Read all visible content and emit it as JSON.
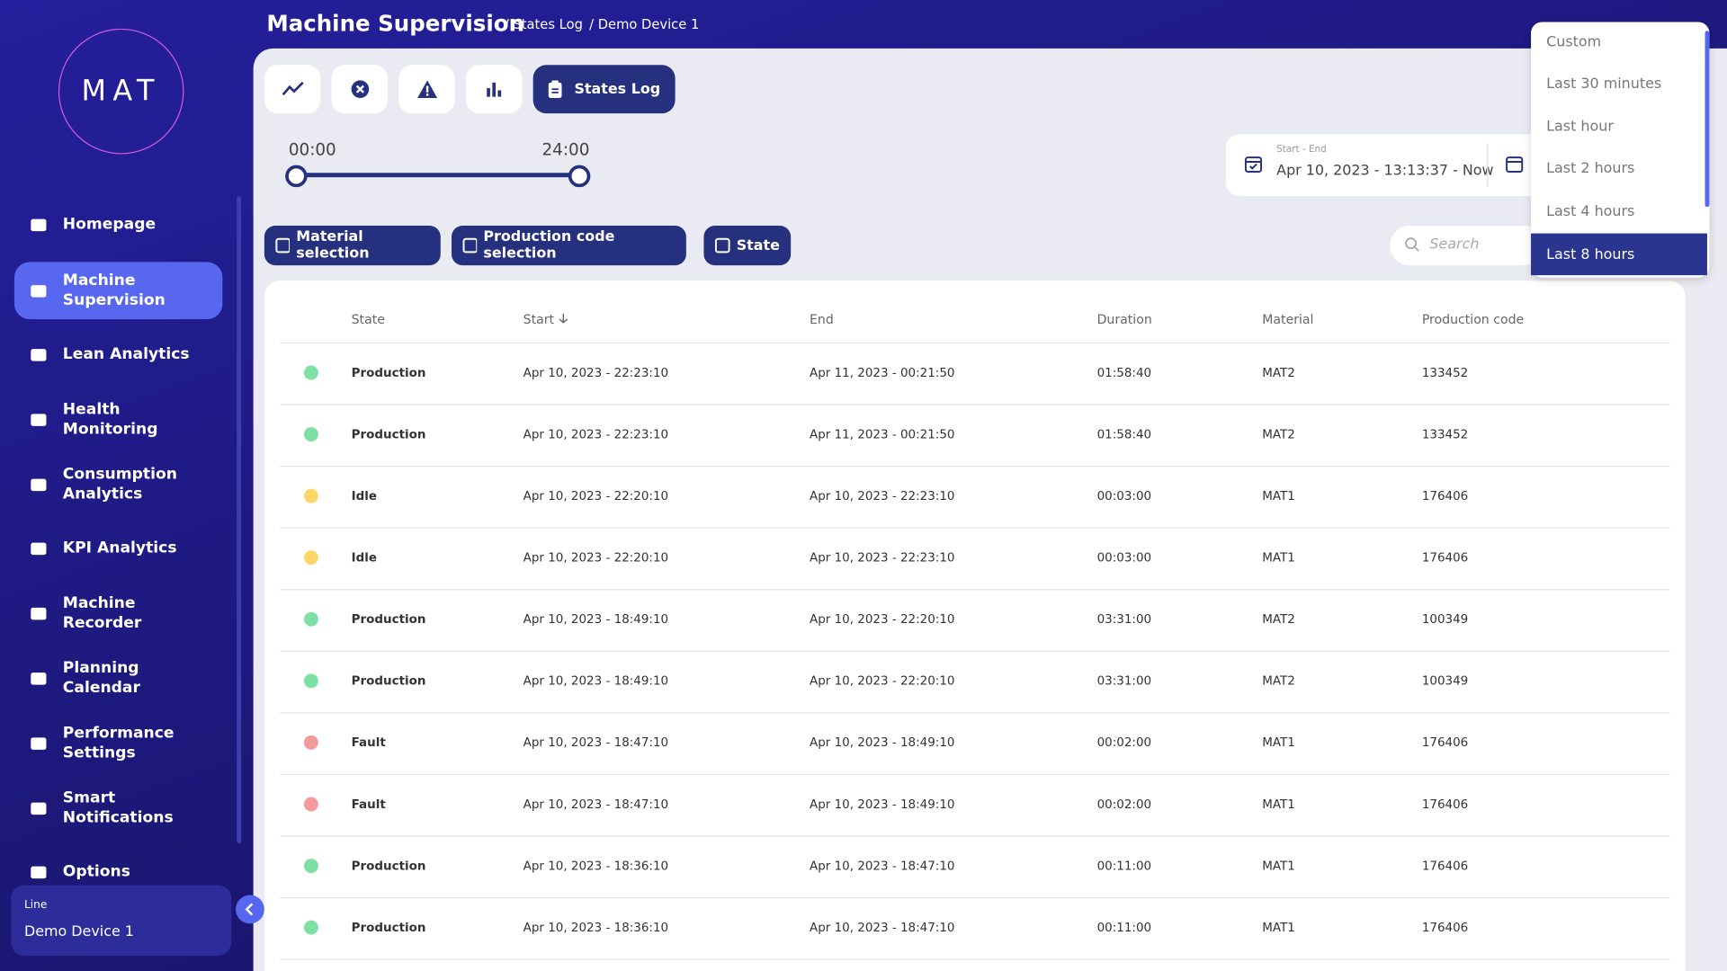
{
  "sidebar": {
    "logo": "MAT",
    "nav": [
      {
        "label": "Homepage"
      },
      {
        "label": "Machine Supervision",
        "active": true
      },
      {
        "label": "Lean Analytics"
      },
      {
        "label": "Health Monitoring"
      },
      {
        "label": "Consumption Analytics"
      },
      {
        "label": "KPI Analytics"
      },
      {
        "label": "Machine Recorder"
      },
      {
        "label": "Planning Calendar"
      },
      {
        "label": "Performance Settings"
      },
      {
        "label": "Smart Notifications"
      },
      {
        "label": "Options"
      }
    ],
    "line_label": "Line",
    "line_value": "Demo Device 1"
  },
  "header": {
    "title": "Machine Supervision",
    "breadcrumbs": [
      "/ States Log",
      "/ Demo Device 1"
    ]
  },
  "tabs": {
    "active_label": "States Log"
  },
  "slider": {
    "start": "00:00",
    "end": "24:00"
  },
  "date_range": {
    "label": "Start - End",
    "value": "Apr 10, 2023 - 13:13:37 - Now"
  },
  "filters": [
    "Material selection",
    "Production code selection",
    "State"
  ],
  "search": {
    "placeholder": "Search"
  },
  "dropdown": [
    {
      "label": "Custom"
    },
    {
      "label": "Last 30 minutes"
    },
    {
      "label": "Last hour"
    },
    {
      "label": "Last 2 hours"
    },
    {
      "label": "Last 4 hours"
    },
    {
      "label": "Last 8 hours",
      "selected": true
    }
  ],
  "table": {
    "columns": [
      {
        "label": "State"
      },
      {
        "label": "Start",
        "sorted": true
      },
      {
        "label": "End"
      },
      {
        "label": "Duration"
      },
      {
        "label": "Material"
      },
      {
        "label": "Production code"
      }
    ],
    "rows": [
      {
        "color": "#7ee0a4",
        "cells": [
          "Production",
          "Apr 10, 2023 - 22:23:10",
          "Apr 11, 2023 - 00:21:50",
          "01:58:40",
          "MAT2",
          "133452"
        ]
      },
      {
        "color": "#7ee0a4",
        "cells": [
          "Production",
          "Apr 10, 2023 - 22:23:10",
          "Apr 11, 2023 - 00:21:50",
          "01:58:40",
          "MAT2",
          "133452"
        ]
      },
      {
        "color": "#fcd667",
        "cells": [
          "Idle",
          "Apr 10, 2023 - 22:20:10",
          "Apr 10, 2023 - 22:23:10",
          "00:03:00",
          "MAT1",
          "176406"
        ]
      },
      {
        "color": "#fcd667",
        "cells": [
          "Idle",
          "Apr 10, 2023 - 22:20:10",
          "Apr 10, 2023 - 22:23:10",
          "00:03:00",
          "MAT1",
          "176406"
        ]
      },
      {
        "color": "#7ee0a4",
        "cells": [
          "Production",
          "Apr 10, 2023 - 18:49:10",
          "Apr 10, 2023 - 22:20:10",
          "03:31:00",
          "MAT2",
          "100349"
        ]
      },
      {
        "color": "#7ee0a4",
        "cells": [
          "Production",
          "Apr 10, 2023 - 18:49:10",
          "Apr 10, 2023 - 22:20:10",
          "03:31:00",
          "MAT2",
          "100349"
        ]
      },
      {
        "color": "#f59a9a",
        "cells": [
          "Fault",
          "Apr 10, 2023 - 18:47:10",
          "Apr 10, 2023 - 18:49:10",
          "00:02:00",
          "MAT1",
          "176406"
        ]
      },
      {
        "color": "#f59a9a",
        "cells": [
          "Fault",
          "Apr 10, 2023 - 18:47:10",
          "Apr 10, 2023 - 18:49:10",
          "00:02:00",
          "MAT1",
          "176406"
        ]
      },
      {
        "color": "#7ee0a4",
        "cells": [
          "Production",
          "Apr 10, 2023 - 18:36:10",
          "Apr 10, 2023 - 18:47:10",
          "00:11:00",
          "MAT1",
          "176406"
        ]
      },
      {
        "color": "#7ee0a4",
        "cells": [
          "Production",
          "Apr 10, 2023 - 18:36:10",
          "Apr 10, 2023 - 18:47:10",
          "00:11:00",
          "MAT1",
          "176406"
        ]
      }
    ]
  }
}
